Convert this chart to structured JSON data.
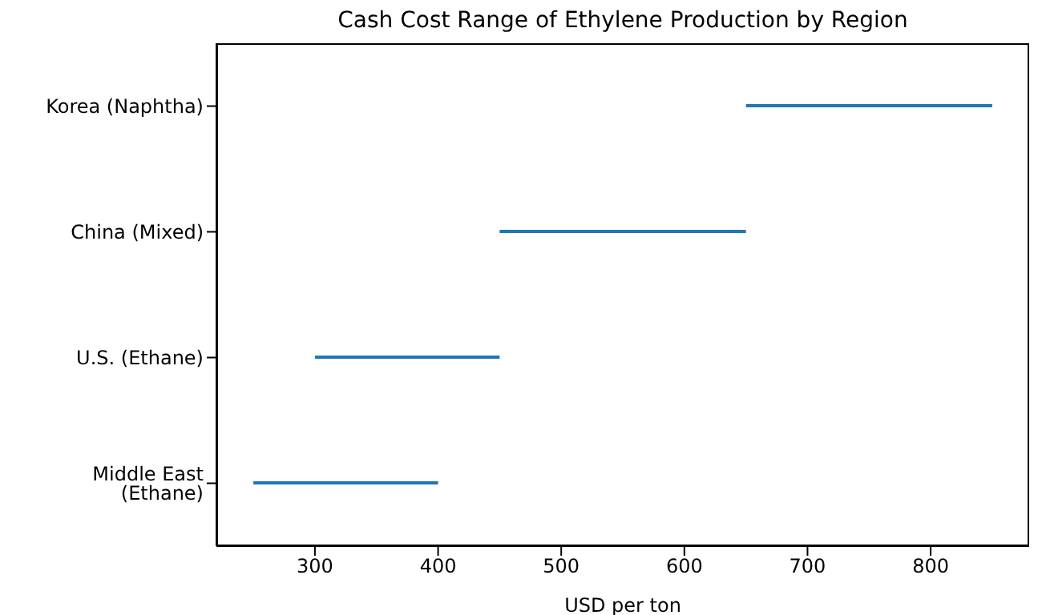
{
  "chart_data": {
    "type": "bar",
    "orientation": "horizontal",
    "title": "Cash Cost Range of Ethylene Production by Region",
    "xlabel": "USD per ton",
    "categories": [
      "Korea (Naphtha)",
      "China (Mixed)",
      "U.S. (Ethane)",
      "Middle East (Ethane)"
    ],
    "base": [
      650,
      450,
      300,
      250
    ],
    "values": [
      200,
      200,
      150,
      150
    ],
    "color": "#1f77b4",
    "xlim": [
      220,
      880
    ],
    "xticks": [
      300,
      400,
      500,
      600,
      700,
      800
    ]
  }
}
